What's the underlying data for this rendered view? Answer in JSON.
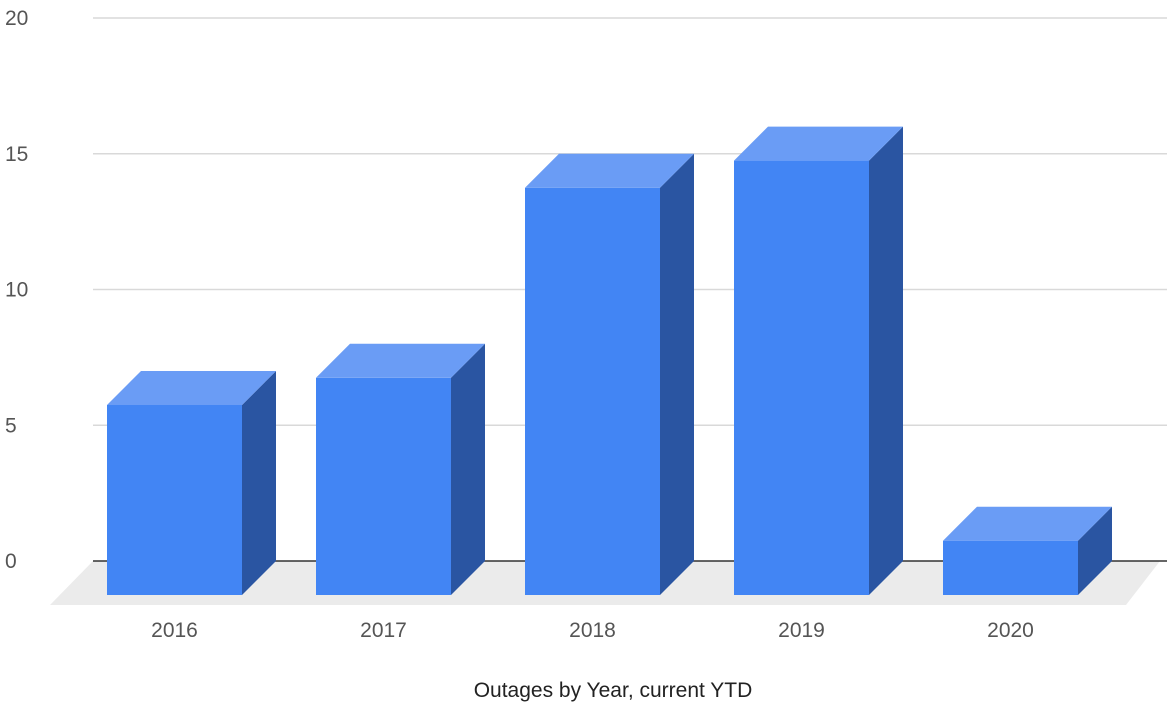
{
  "chart_data": {
    "type": "bar",
    "style": "3d",
    "categories": [
      "2016",
      "2017",
      "2018",
      "2019",
      "2020"
    ],
    "values": [
      7,
      8,
      15,
      16,
      2
    ],
    "title": "",
    "xlabel": "Outages by Year, current YTD",
    "ylabel": "",
    "ylim": [
      0,
      20
    ],
    "yticks": [
      0,
      5,
      10,
      15,
      20
    ],
    "grid": true,
    "legend": "none",
    "colors": {
      "bar_front": "#4285f4",
      "bar_top": "#6a9cf5",
      "bar_side": "#2a55a2",
      "floor": "#ebebeb",
      "gridline": "#d9d9d9",
      "baseline": "#333333"
    }
  }
}
